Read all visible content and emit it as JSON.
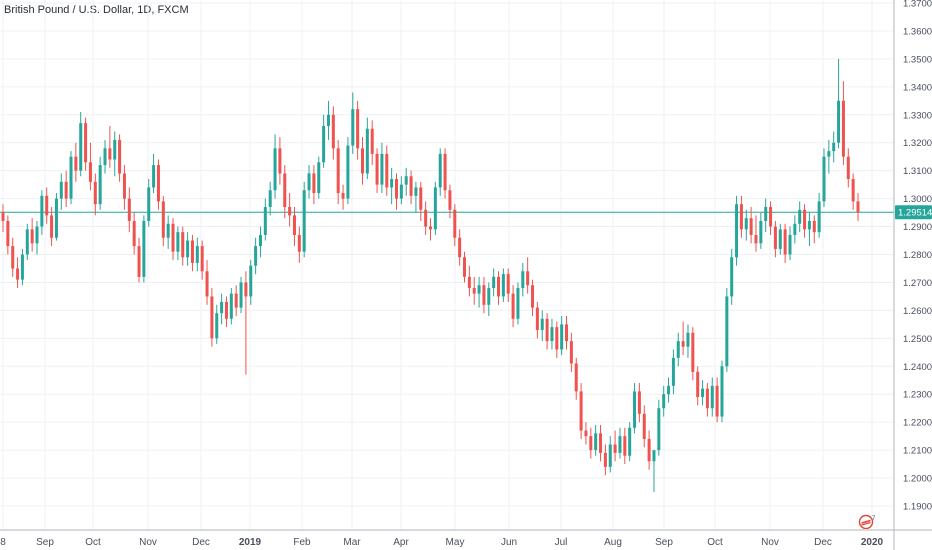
{
  "symbol_title": "British Pound / U.S. Dollar, 1D, FXCM",
  "colors": {
    "up": "#26a69a",
    "down": "#ef5350",
    "grid": "#eef0f4",
    "axis": "#b2b5be",
    "price_line": "#26a69a"
  },
  "last_price": {
    "label": "1.29514",
    "value": 1.29514
  },
  "chart_data": {
    "type": "candlestick",
    "title": "British Pound / U.S. Dollar, 1D, FXCM",
    "ylim": [
      1.185,
      1.37
    ],
    "y_ticks": [
      "1.19000",
      "1.20000",
      "1.21000",
      "1.22000",
      "1.23000",
      "1.24000",
      "1.25000",
      "1.26000",
      "1.27000",
      "1.28000",
      "1.29000",
      "1.30000",
      "1.31000",
      "1.32000",
      "1.33000",
      "1.34000",
      "1.35000",
      "1.36000",
      "1.37000"
    ],
    "x_labels": [
      "8",
      "Sep",
      "Oct",
      "Nov",
      "Dec",
      "2019",
      "Feb",
      "Mar",
      "Apr",
      "May",
      "Jun",
      "Jul",
      "Aug",
      "Sep",
      "Oct",
      "Nov",
      "Dec",
      "2020"
    ],
    "x_label_bold": [
      "2019",
      "2020"
    ],
    "grid": true,
    "series": [
      {
        "candles": [
          [
            1.295,
            1.298,
            1.288,
            1.292
          ],
          [
            1.292,
            1.294,
            1.28,
            1.283
          ],
          [
            1.283,
            1.286,
            1.272,
            1.275
          ],
          [
            1.275,
            1.279,
            1.268,
            1.271
          ],
          [
            1.271,
            1.282,
            1.269,
            1.28
          ],
          [
            1.28,
            1.291,
            1.278,
            1.289
          ],
          [
            1.289,
            1.293,
            1.281,
            1.284
          ],
          [
            1.284,
            1.292,
            1.28,
            1.29
          ],
          [
            1.29,
            1.303,
            1.287,
            1.301
          ],
          [
            1.301,
            1.304,
            1.291,
            1.294
          ],
          [
            1.294,
            1.297,
            1.283,
            1.286
          ],
          [
            1.286,
            1.302,
            1.285,
            1.3
          ],
          [
            1.3,
            1.309,
            1.296,
            1.306
          ],
          [
            1.306,
            1.31,
            1.297,
            1.3
          ],
          [
            1.3,
            1.317,
            1.298,
            1.315
          ],
          [
            1.315,
            1.32,
            1.306,
            1.31
          ],
          [
            1.31,
            1.331,
            1.308,
            1.327
          ],
          [
            1.327,
            1.329,
            1.31,
            1.313
          ],
          [
            1.313,
            1.32,
            1.303,
            1.306
          ],
          [
            1.306,
            1.309,
            1.294,
            1.298
          ],
          [
            1.298,
            1.315,
            1.296,
            1.312
          ],
          [
            1.312,
            1.321,
            1.309,
            1.318
          ],
          [
            1.318,
            1.326,
            1.311,
            1.314
          ],
          [
            1.314,
            1.324,
            1.308,
            1.321
          ],
          [
            1.321,
            1.323,
            1.306,
            1.309
          ],
          [
            1.309,
            1.312,
            1.296,
            1.3
          ],
          [
            1.3,
            1.304,
            1.288,
            1.292
          ],
          [
            1.292,
            1.295,
            1.28,
            1.283
          ],
          [
            1.283,
            1.286,
            1.27,
            1.272
          ],
          [
            1.272,
            1.294,
            1.27,
            1.292
          ],
          [
            1.292,
            1.307,
            1.29,
            1.304
          ],
          [
            1.304,
            1.316,
            1.302,
            1.312
          ],
          [
            1.312,
            1.314,
            1.296,
            1.299
          ],
          [
            1.299,
            1.301,
            1.283,
            1.286
          ],
          [
            1.286,
            1.294,
            1.282,
            1.291
          ],
          [
            1.291,
            1.293,
            1.278,
            1.281
          ],
          [
            1.281,
            1.29,
            1.278,
            1.288
          ],
          [
            1.288,
            1.29,
            1.276,
            1.279
          ],
          [
            1.279,
            1.288,
            1.276,
            1.285
          ],
          [
            1.285,
            1.287,
            1.274,
            1.277
          ],
          [
            1.277,
            1.286,
            1.274,
            1.283
          ],
          [
            1.283,
            1.285,
            1.271,
            1.274
          ],
          [
            1.274,
            1.278,
            1.262,
            1.265
          ],
          [
            1.265,
            1.268,
            1.247,
            1.25
          ],
          [
            1.25,
            1.262,
            1.248,
            1.259
          ],
          [
            1.259,
            1.266,
            1.255,
            1.263
          ],
          [
            1.263,
            1.265,
            1.254,
            1.257
          ],
          [
            1.257,
            1.268,
            1.255,
            1.266
          ],
          [
            1.266,
            1.269,
            1.258,
            1.261
          ],
          [
            1.261,
            1.272,
            1.259,
            1.27
          ],
          [
            1.27,
            1.274,
            1.237,
            1.265
          ],
          [
            1.265,
            1.278,
            1.262,
            1.276
          ],
          [
            1.276,
            1.286,
            1.273,
            1.283
          ],
          [
            1.283,
            1.29,
            1.279,
            1.287
          ],
          [
            1.287,
            1.3,
            1.285,
            1.297
          ],
          [
            1.297,
            1.306,
            1.294,
            1.303
          ],
          [
            1.303,
            1.323,
            1.3,
            1.318
          ],
          [
            1.318,
            1.322,
            1.305,
            1.309
          ],
          [
            1.309,
            1.312,
            1.293,
            1.297
          ],
          [
            1.297,
            1.302,
            1.29,
            1.294
          ],
          [
            1.294,
            1.297,
            1.283,
            1.287
          ],
          [
            1.287,
            1.29,
            1.277,
            1.281
          ],
          [
            1.281,
            1.306,
            1.279,
            1.303
          ],
          [
            1.303,
            1.312,
            1.3,
            1.309
          ],
          [
            1.309,
            1.312,
            1.298,
            1.302
          ],
          [
            1.302,
            1.315,
            1.3,
            1.313
          ],
          [
            1.313,
            1.33,
            1.311,
            1.326
          ],
          [
            1.326,
            1.335,
            1.321,
            1.33
          ],
          [
            1.33,
            1.333,
            1.314,
            1.318
          ],
          [
            1.318,
            1.321,
            1.298,
            1.302
          ],
          [
            1.302,
            1.305,
            1.296,
            1.3
          ],
          [
            1.3,
            1.322,
            1.298,
            1.319
          ],
          [
            1.319,
            1.338,
            1.316,
            1.332
          ],
          [
            1.332,
            1.335,
            1.314,
            1.318
          ],
          [
            1.318,
            1.322,
            1.305,
            1.309
          ],
          [
            1.309,
            1.329,
            1.307,
            1.325
          ],
          [
            1.325,
            1.328,
            1.312,
            1.316
          ],
          [
            1.316,
            1.318,
            1.302,
            1.305
          ],
          [
            1.305,
            1.32,
            1.302,
            1.316
          ],
          [
            1.316,
            1.319,
            1.301,
            1.304
          ],
          [
            1.304,
            1.311,
            1.298,
            1.307
          ],
          [
            1.307,
            1.309,
            1.296,
            1.3
          ],
          [
            1.3,
            1.308,
            1.298,
            1.305
          ],
          [
            1.305,
            1.311,
            1.301,
            1.308
          ],
          [
            1.308,
            1.31,
            1.298,
            1.301
          ],
          [
            1.301,
            1.306,
            1.295,
            1.304
          ],
          [
            1.304,
            1.306,
            1.292,
            1.296
          ],
          [
            1.296,
            1.299,
            1.287,
            1.29
          ],
          [
            1.29,
            1.293,
            1.285,
            1.289
          ],
          [
            1.289,
            1.306,
            1.287,
            1.304
          ],
          [
            1.304,
            1.318,
            1.301,
            1.316
          ],
          [
            1.316,
            1.318,
            1.3,
            1.303
          ],
          [
            1.303,
            1.305,
            1.293,
            1.296
          ],
          [
            1.296,
            1.298,
            1.283,
            1.286
          ],
          [
            1.286,
            1.289,
            1.276,
            1.279
          ],
          [
            1.279,
            1.281,
            1.27,
            1.272
          ],
          [
            1.272,
            1.276,
            1.265,
            1.268
          ],
          [
            1.268,
            1.272,
            1.262,
            1.266
          ],
          [
            1.266,
            1.272,
            1.261,
            1.269
          ],
          [
            1.269,
            1.272,
            1.259,
            1.262
          ],
          [
            1.262,
            1.27,
            1.258,
            1.268
          ],
          [
            1.268,
            1.275,
            1.265,
            1.272
          ],
          [
            1.272,
            1.274,
            1.262,
            1.265
          ],
          [
            1.265,
            1.275,
            1.263,
            1.273
          ],
          [
            1.273,
            1.275,
            1.263,
            1.266
          ],
          [
            1.266,
            1.269,
            1.254,
            1.257
          ],
          [
            1.257,
            1.27,
            1.255,
            1.268
          ],
          [
            1.268,
            1.277,
            1.265,
            1.274
          ],
          [
            1.274,
            1.279,
            1.266,
            1.269
          ],
          [
            1.269,
            1.271,
            1.258,
            1.261
          ],
          [
            1.261,
            1.263,
            1.25,
            1.253
          ],
          [
            1.253,
            1.26,
            1.249,
            1.257
          ],
          [
            1.257,
            1.259,
            1.246,
            1.249
          ],
          [
            1.249,
            1.257,
            1.246,
            1.254
          ],
          [
            1.254,
            1.256,
            1.243,
            1.246
          ],
          [
            1.246,
            1.258,
            1.244,
            1.255
          ],
          [
            1.255,
            1.258,
            1.246,
            1.249
          ],
          [
            1.249,
            1.252,
            1.238,
            1.241
          ],
          [
            1.241,
            1.243,
            1.228,
            1.231
          ],
          [
            1.231,
            1.234,
            1.214,
            1.217
          ],
          [
            1.217,
            1.22,
            1.212,
            1.215
          ],
          [
            1.215,
            1.218,
            1.207,
            1.21
          ],
          [
            1.21,
            1.219,
            1.208,
            1.216
          ],
          [
            1.216,
            1.219,
            1.206,
            1.209
          ],
          [
            1.209,
            1.212,
            1.201,
            1.204
          ],
          [
            1.204,
            1.215,
            1.202,
            1.212
          ],
          [
            1.212,
            1.217,
            1.206,
            1.209
          ],
          [
            1.209,
            1.218,
            1.207,
            1.215
          ],
          [
            1.215,
            1.218,
            1.205,
            1.208
          ],
          [
            1.208,
            1.22,
            1.206,
            1.218
          ],
          [
            1.218,
            1.234,
            1.216,
            1.231
          ],
          [
            1.231,
            1.234,
            1.22,
            1.223
          ],
          [
            1.223,
            1.226,
            1.211,
            1.214
          ],
          [
            1.214,
            1.217,
            1.203,
            1.206
          ],
          [
            1.206,
            1.209,
            1.195,
            1.21
          ],
          [
            1.21,
            1.228,
            1.208,
            1.225
          ],
          [
            1.225,
            1.233,
            1.222,
            1.23
          ],
          [
            1.23,
            1.236,
            1.227,
            1.233
          ],
          [
            1.233,
            1.246,
            1.23,
            1.243
          ],
          [
            1.243,
            1.252,
            1.24,
            1.249
          ],
          [
            1.249,
            1.256,
            1.244,
            1.247
          ],
          [
            1.247,
            1.255,
            1.243,
            1.252
          ],
          [
            1.252,
            1.254,
            1.235,
            1.238
          ],
          [
            1.238,
            1.24,
            1.226,
            1.229
          ],
          [
            1.229,
            1.235,
            1.226,
            1.232
          ],
          [
            1.232,
            1.234,
            1.222,
            1.225
          ],
          [
            1.225,
            1.236,
            1.222,
            1.233
          ],
          [
            1.233,
            1.236,
            1.22,
            1.222
          ],
          [
            1.222,
            1.242,
            1.22,
            1.24
          ],
          [
            1.24,
            1.268,
            1.238,
            1.265
          ],
          [
            1.265,
            1.282,
            1.262,
            1.279
          ],
          [
            1.279,
            1.301,
            1.276,
            1.298
          ],
          [
            1.298,
            1.301,
            1.286,
            1.289
          ],
          [
            1.289,
            1.296,
            1.285,
            1.293
          ],
          [
            1.293,
            1.297,
            1.284,
            1.287
          ],
          [
            1.287,
            1.294,
            1.281,
            1.284
          ],
          [
            1.284,
            1.295,
            1.282,
            1.292
          ],
          [
            1.292,
            1.3,
            1.288,
            1.297
          ],
          [
            1.297,
            1.299,
            1.287,
            1.29
          ],
          [
            1.29,
            1.292,
            1.279,
            1.282
          ],
          [
            1.282,
            1.291,
            1.28,
            1.289
          ],
          [
            1.289,
            1.291,
            1.277,
            1.28
          ],
          [
            1.28,
            1.29,
            1.278,
            1.287
          ],
          [
            1.287,
            1.294,
            1.284,
            1.291
          ],
          [
            1.291,
            1.299,
            1.288,
            1.296
          ],
          [
            1.296,
            1.298,
            1.286,
            1.289
          ],
          [
            1.289,
            1.295,
            1.283,
            1.292
          ],
          [
            1.292,
            1.294,
            1.284,
            1.288
          ],
          [
            1.288,
            1.302,
            1.286,
            1.299
          ],
          [
            1.299,
            1.318,
            1.297,
            1.315
          ],
          [
            1.315,
            1.321,
            1.309,
            1.317
          ],
          [
            1.317,
            1.324,
            1.313,
            1.32
          ],
          [
            1.32,
            1.35,
            1.318,
            1.335
          ],
          [
            1.335,
            1.342,
            1.312,
            1.315
          ],
          [
            1.315,
            1.318,
            1.304,
            1.307
          ],
          [
            1.307,
            1.309,
            1.296,
            1.299
          ],
          [
            1.299,
            1.302,
            1.292,
            1.295
          ]
        ]
      }
    ]
  }
}
